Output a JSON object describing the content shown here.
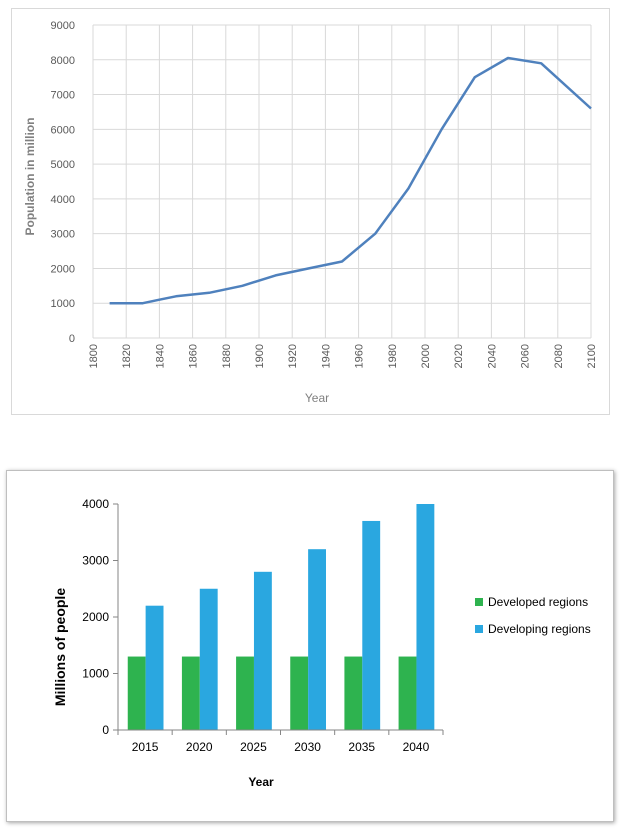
{
  "chart_data": [
    {
      "type": "line",
      "title": "",
      "xlabel": "Year",
      "ylabel": "Population in million",
      "xlim": [
        1800,
        2100
      ],
      "ylim": [
        0,
        9000
      ],
      "x_ticks": [
        "1800",
        "1820",
        "1840",
        "1860",
        "1880",
        "1900",
        "1920",
        "1940",
        "1960",
        "1980",
        "2000",
        "2020",
        "2040",
        "2060",
        "2080",
        "2100"
      ],
      "y_ticks": [
        "0",
        "1000",
        "2000",
        "3000",
        "4000",
        "5000",
        "6000",
        "7000",
        "8000",
        "9000"
      ],
      "grid": true,
      "colors": {
        "line": "#4f81bd",
        "grid": "#d9d9d9"
      },
      "series": [
        {
          "x": [
            1810,
            1830,
            1840,
            1850,
            1870,
            1890,
            1910,
            1930,
            1950,
            1970,
            1990,
            2010,
            2030,
            2050,
            2070,
            2100
          ],
          "values": [
            1000,
            1000,
            1100,
            1200,
            1300,
            1500,
            1800,
            2000,
            2200,
            3000,
            4300,
            6000,
            7500,
            8050,
            7900,
            6600
          ]
        }
      ]
    },
    {
      "type": "bar",
      "title": "",
      "xlabel": "Year",
      "ylabel": "Millions of people",
      "ylim": [
        0,
        4000
      ],
      "y_ticks": [
        "0",
        "1000",
        "2000",
        "3000",
        "4000"
      ],
      "categories": [
        "2015",
        "2020",
        "2025",
        "2030",
        "2035",
        "2040"
      ],
      "legend": "right",
      "grid": false,
      "series": [
        {
          "name": "Developed regions",
          "color": "#2eb34f",
          "values": [
            1300,
            1300,
            1300,
            1300,
            1300,
            1300
          ]
        },
        {
          "name": "Developing regions",
          "color": "#2aa7e0",
          "values": [
            2200,
            2500,
            2800,
            3200,
            3700,
            4000
          ]
        }
      ]
    }
  ]
}
